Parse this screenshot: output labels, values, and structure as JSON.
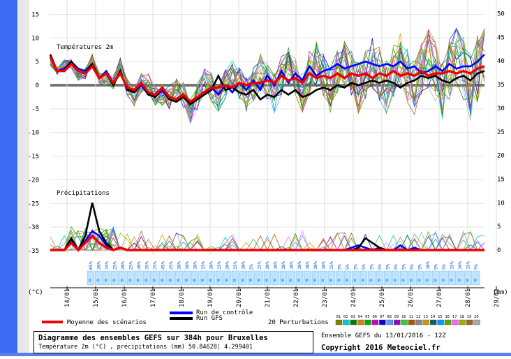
{
  "chart_data": {
    "type": "line",
    "title": "Diagramme des ensembles GEFS sur 384h pour Bruxelles",
    "subtitle": "Température 2m (°C) , précipitations (mm) 50.84628¦ 4.299401",
    "panels": {
      "temperature": "Températures 2m",
      "precipitation": "Précipitations"
    },
    "left_axis": {
      "unit_label": "(°C)",
      "ticks": [
        "15",
        "10",
        "5",
        "0",
        "-5",
        "-10",
        "-15",
        "-20",
        "-25",
        "-30",
        "-35"
      ],
      "range": [
        -35,
        17
      ]
    },
    "right_axis": {
      "unit_label": "(mm)",
      "ticks": [
        "50",
        "45",
        "40",
        "35",
        "30",
        "25",
        "20",
        "15",
        "10",
        "5",
        "0"
      ],
      "range": [
        0,
        52
      ]
    },
    "x_axis": {
      "tick_labels": [
        "14/01",
        "15/01",
        "16/01",
        "17/01",
        "18/01",
        "19/01",
        "20/01",
        "21/01",
        "22/01",
        "23/01",
        "24/01",
        "25/01",
        "26/01",
        "27/01",
        "28/01",
        "29/01"
      ]
    },
    "series": [
      {
        "name": "Run de contrôle",
        "color": "#0000ff",
        "temperature": [
          6.5,
          3.0,
          3.5,
          5.0,
          3.5,
          3.0,
          4.5,
          1.5,
          3.0,
          0.5,
          2.5,
          -0.5,
          -1.5,
          0.0,
          -2.0,
          -2.5,
          -1.0,
          -3.0,
          -3.5,
          -2.5,
          -4.0,
          -3.0,
          -2.0,
          -0.5,
          -2.0,
          0.0,
          -1.5,
          0.5,
          -1.0,
          1.0,
          -1.0,
          2.0,
          0.0,
          3.0,
          0.5,
          2.5,
          1.0,
          4.0,
          2.0,
          3.0,
          3.5,
          4.5,
          3.5,
          4.0,
          4.5,
          5.0,
          4.5,
          4.0,
          4.5,
          4.0,
          5.0,
          3.5,
          4.0,
          2.5,
          3.0,
          4.0,
          3.0,
          4.5,
          3.5,
          4.0,
          4.0,
          5.0,
          6.5
        ],
        "precipitation": [
          0,
          0,
          0,
          2,
          0,
          2,
          4,
          3,
          1,
          0,
          0.5,
          0,
          0,
          0,
          0,
          0,
          0,
          0,
          0,
          0,
          0,
          0,
          0,
          0,
          0,
          0,
          0,
          0,
          0,
          0,
          0,
          0,
          0,
          0,
          0,
          0,
          0,
          0,
          0,
          0,
          0,
          0,
          0,
          0.5,
          1,
          0.5,
          0,
          0.5,
          0,
          0,
          1,
          0,
          0.5,
          0,
          0,
          0,
          0,
          0,
          0,
          0,
          0,
          0,
          0
        ]
      },
      {
        "name": "Run GFS",
        "color": "#000000",
        "temperature": [
          6.5,
          3.0,
          3.0,
          5.0,
          3.0,
          2.5,
          4.5,
          1.5,
          2.5,
          0.0,
          3.0,
          -1.0,
          -1.5,
          0.5,
          -2.0,
          -2.5,
          -0.5,
          -3.0,
          -3.5,
          -2.5,
          -4.0,
          -3.0,
          -2.0,
          -1.0,
          2.0,
          -1.0,
          -0.5,
          -1.5,
          -2.0,
          -1.0,
          -3.0,
          -2.0,
          -2.5,
          -1.0,
          -2.0,
          -1.0,
          -2.5,
          -2.0,
          -1.0,
          -0.5,
          -1.0,
          0.0,
          -0.5,
          0.5,
          0.0,
          0.5,
          1.0,
          0.5,
          1.0,
          0.5,
          -0.5,
          0.5,
          1.0,
          2.0,
          1.5,
          2.0,
          1.0,
          0.5,
          1.5,
          2.0,
          1.0,
          2.5,
          3.0
        ],
        "precipitation": [
          0,
          0,
          0,
          2.5,
          0,
          3,
          10,
          4,
          1.5,
          0,
          0.5,
          0,
          0,
          0,
          0,
          0,
          0,
          0,
          0,
          0,
          0,
          0,
          0,
          0,
          0,
          0,
          0,
          0,
          0,
          0,
          0,
          0,
          0,
          0,
          0,
          0,
          0,
          0,
          0,
          0,
          0,
          0,
          0,
          0,
          0.5,
          2.5,
          1.5,
          0.5,
          0,
          0,
          0,
          0,
          0,
          0,
          0,
          0,
          0,
          0,
          0,
          0,
          0,
          0,
          0
        ]
      },
      {
        "name": "Moyenne des scénarios",
        "color": "#ee0000",
        "temperature": [
          6.0,
          3.0,
          3.0,
          4.5,
          3.0,
          2.5,
          4.0,
          1.5,
          2.5,
          0.5,
          2.5,
          -0.5,
          -1.0,
          0.5,
          -1.5,
          -2.0,
          -0.5,
          -2.5,
          -3.0,
          -2.0,
          -3.5,
          -2.5,
          -1.5,
          -0.5,
          -0.5,
          0.0,
          -0.5,
          0.5,
          0.0,
          0.5,
          0.5,
          1.0,
          0.5,
          2.0,
          1.0,
          1.5,
          0.5,
          2.5,
          1.5,
          2.0,
          1.5,
          2.5,
          1.5,
          2.5,
          2.0,
          2.5,
          1.5,
          2.5,
          2.0,
          3.0,
          2.0,
          2.5,
          2.0,
          3.0,
          2.0,
          2.5,
          2.5,
          3.0,
          2.5,
          3.0,
          2.5,
          3.5,
          4.0
        ],
        "precipitation": [
          0,
          0,
          0,
          1.5,
          0,
          1.5,
          3,
          1.5,
          0.5,
          0,
          0.5,
          0,
          0,
          0,
          0,
          0,
          0,
          0,
          0,
          0,
          0,
          0,
          0,
          0,
          0,
          0,
          0,
          0,
          0,
          0,
          0,
          0,
          0,
          0,
          0,
          0,
          0,
          0,
          0,
          0,
          0,
          0,
          0,
          0,
          0,
          0,
          0,
          0,
          0,
          0,
          0,
          0,
          0,
          0,
          0,
          0,
          0,
          0,
          0,
          0,
          0,
          0,
          0
        ]
      }
    ],
    "perturbations": {
      "label": "20 Perturbations",
      "ids": [
        "01",
        "02",
        "03",
        "04",
        "05",
        "06",
        "07",
        "08",
        "09",
        "10",
        "11",
        "12",
        "13",
        "14",
        "15",
        "16",
        "17",
        "18",
        "19",
        "20"
      ],
      "colors": [
        "#7f7f00",
        "#00cccc",
        "#008000",
        "#cc8800",
        "#00aa00",
        "#cc00cc",
        "#0000cc",
        "#4aa0ff",
        "#9900cc",
        "#33cc33",
        "#aa5500",
        "#888888",
        "#cc9900",
        "#006666",
        "#0099ff",
        "#55aa00",
        "#ff66ff",
        "#aaaa00",
        "#996633",
        "#aaaaaa"
      ]
    },
    "snow_annotations": [
      "65%",
      "20%",
      "15%",
      "25%",
      "20%",
      "25%",
      "20%",
      "35%",
      "75%",
      "45%",
      "25%",
      "20%",
      "10%",
      "10%",
      "15%",
      "10%",
      "15%",
      "20%",
      "15%",
      "10%",
      "5%",
      "15%",
      "10%",
      "10%",
      "10%",
      "10%",
      "10%",
      "10%",
      "10%",
      "10%",
      "15%",
      "5%",
      "5%",
      "5%",
      "5%",
      "5%",
      "5%",
      "5%",
      "5%",
      "5%",
      "5%",
      "5%",
      "10%",
      "5%",
      "5%",
      "15%",
      "10%",
      "15%",
      "5%"
    ],
    "run_info": "Ensemble GEFS du 13/01/2016 - 12Z",
    "copyright": "Copyright 2016 Meteociel.fr"
  }
}
